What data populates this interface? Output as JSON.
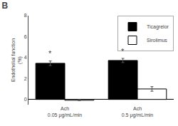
{
  "chart_data": {
    "type": "bar",
    "title": "B",
    "ylabel": "Endothelial function\n(%)",
    "categories": [
      "Ach\n0.05 μg/mL/min",
      "Ach\n0.5 μg/mL/min"
    ],
    "series": [
      {
        "name": "Ticagrelor",
        "color": "#000000",
        "values": [
          3.45,
          3.72
        ],
        "errors": [
          0.22,
          0.2
        ]
      },
      {
        "name": "Sirolimus",
        "color": "#ffffff",
        "values": [
          -0.08,
          1.0
        ],
        "errors": [
          0.05,
          0.22
        ]
      }
    ],
    "annotations": [
      {
        "text": "*",
        "category": "Ach\n0.05 μg/mL/min",
        "series": "Ticagrelor"
      },
      {
        "text": "*",
        "category": "Ach\n0.5 μg/mL/min",
        "series": "Ticagrelor"
      }
    ],
    "ylim": [
      -0.5,
      8
    ],
    "yticks": [
      0,
      2,
      4,
      6,
      8
    ],
    "grid": false,
    "legend": "upper right"
  }
}
